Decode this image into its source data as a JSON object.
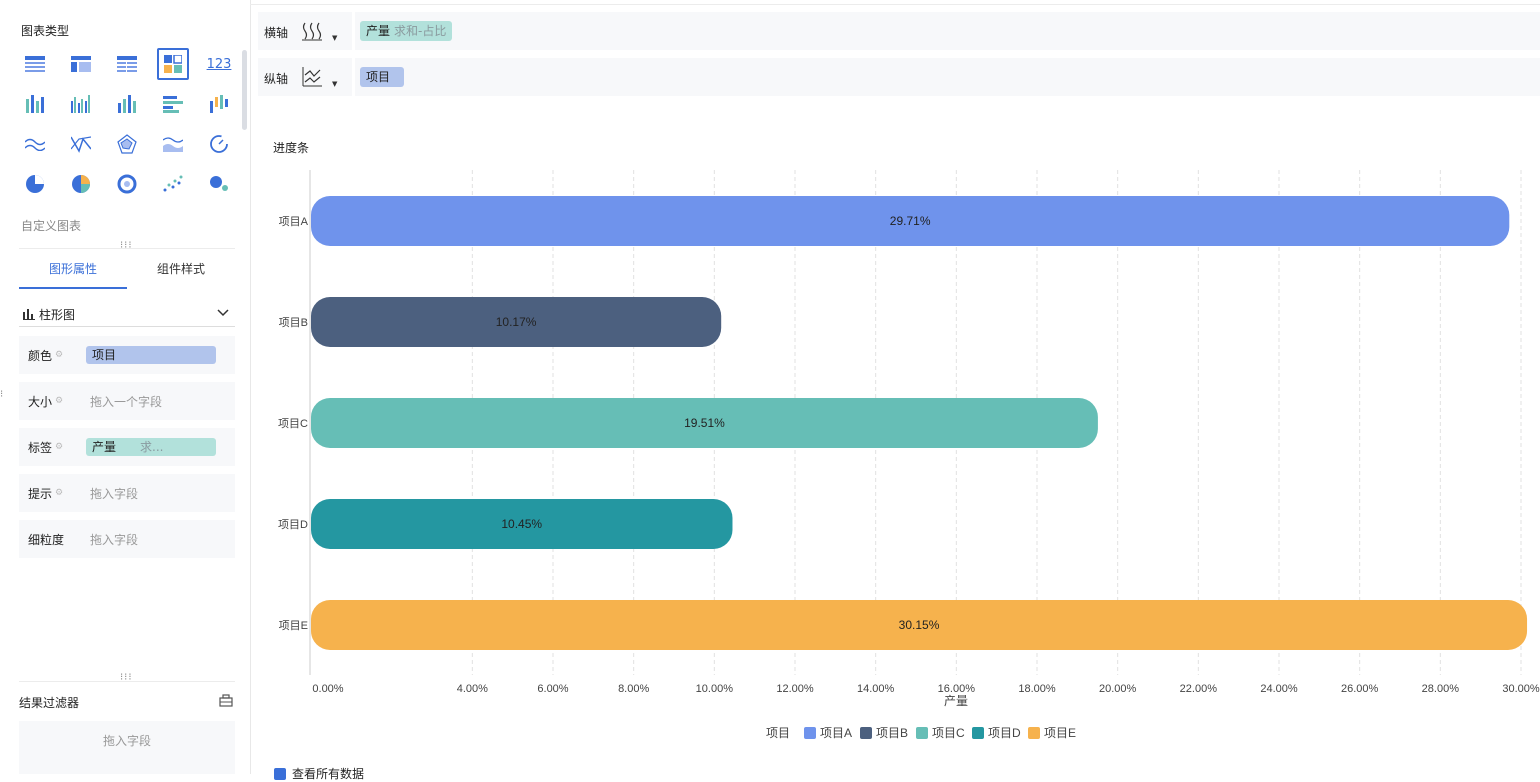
{
  "sidebar": {
    "chart_types_title": "图表类型",
    "custom_chart": "自定义图表",
    "tabs": [
      {
        "label": "图形属性"
      },
      {
        "label": "组件样式"
      }
    ],
    "chart_type_label": "柱形图",
    "properties": [
      {
        "label": "颜色",
        "chip": "项目",
        "chip_type": "blue"
      },
      {
        "label": "大小",
        "placeholder": "拖入一个字段"
      },
      {
        "label": "标签",
        "chip": "产量",
        "chip_sub": "求...",
        "chip_type": "teal"
      },
      {
        "label": "提示",
        "placeholder": "拖入字段"
      },
      {
        "label": "细粒度",
        "placeholder": "拖入字段"
      }
    ],
    "filter_title": "结果过滤器",
    "filter_placeholder": "拖入字段",
    "number_icon_text": "123"
  },
  "shelves": {
    "x_axis_label": "横轴",
    "x_field": "产量",
    "x_field_sub": "求和-占比",
    "y_axis_label": "纵轴",
    "y_field": "项目"
  },
  "chart_title": "进度条",
  "view_all": "查看所有数据",
  "colors": {
    "accent": "#3a6fd8",
    "A": "#6f93ec",
    "B": "#4c607f",
    "C": "#66beb6",
    "D": "#2497a1",
    "E": "#f6b24d"
  },
  "chart_data": {
    "type": "bar",
    "orientation": "horizontal",
    "categories": [
      "项目A",
      "项目B",
      "项目C",
      "项目D",
      "项目E"
    ],
    "values": [
      29.71,
      10.17,
      19.51,
      10.45,
      30.15
    ],
    "labels": [
      "29.71%",
      "10.17%",
      "19.51%",
      "10.45%",
      "30.15%"
    ],
    "xlabel": "产量",
    "xlim": [
      0,
      30
    ],
    "xticks": [
      "0.00%",
      "4.00%",
      "6.00%",
      "8.00%",
      "10.00%",
      "12.00%",
      "14.00%",
      "16.00%",
      "18.00%",
      "20.00%",
      "22.00%",
      "24.00%",
      "26.00%",
      "28.00%",
      "30.00%"
    ],
    "xtick_values": [
      0,
      4,
      6,
      8,
      10,
      12,
      14,
      16,
      18,
      20,
      22,
      24,
      26,
      28,
      30
    ],
    "grid": true,
    "legend": {
      "title": "项目",
      "placement": "bottom",
      "items": [
        "项目A",
        "项目B",
        "项目C",
        "项目D",
        "项目E"
      ]
    }
  }
}
